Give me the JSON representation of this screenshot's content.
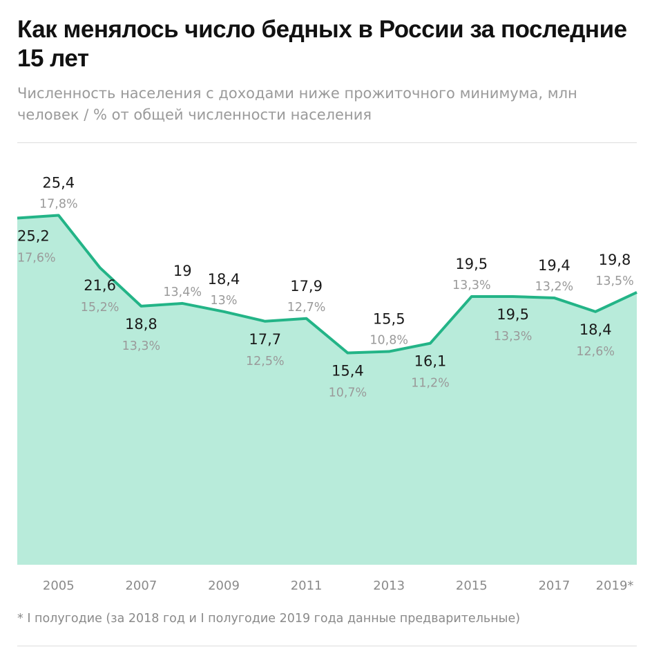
{
  "chart_data": {
    "type": "area",
    "title": "Как менялось число бедных в России за последние 15 лет",
    "subtitle": "Численность населения с доходами ниже прожиточного минимума, млн человек / % от общей численности населения",
    "x": [
      2004,
      2005,
      2006,
      2007,
      2008,
      2009,
      2010,
      2011,
      2012,
      2013,
      2014,
      2015,
      2016,
      2017,
      2018,
      2019
    ],
    "values": [
      25.2,
      25.4,
      21.6,
      18.8,
      19,
      18.4,
      17.7,
      17.9,
      15.4,
      15.5,
      16.1,
      19.5,
      19.5,
      19.4,
      18.4,
      19.8
    ],
    "value_labels": [
      "25,2",
      "25,4",
      "21,6",
      "18,8",
      "19",
      "18,4",
      "17,7",
      "17,9",
      "15,4",
      "15,5",
      "16,1",
      "19,5",
      "19,5",
      "19,4",
      "18,4",
      "19,8"
    ],
    "percent_labels": [
      "17,6%",
      "17,8%",
      "15,2%",
      "13,3%",
      "13,4%",
      "13%",
      "12,5%",
      "12,7%",
      "10,7%",
      "10,8%",
      "11,2%",
      "13,3%",
      "13,3%",
      "13,2%",
      "12,6%",
      "13,5%"
    ],
    "x_tick_values": [
      2005,
      2007,
      2009,
      2011,
      2013,
      2015,
      2017,
      2019
    ],
    "x_tick_labels": [
      "2005",
      "2007",
      "2009",
      "2011",
      "2013",
      "2015",
      "2017",
      "2019*"
    ],
    "xlim": [
      2004,
      2019
    ],
    "ylim": [
      0,
      26
    ],
    "grid": false,
    "colors": {
      "line": "#23b487",
      "fill": "#b8ebda",
      "value_text": "#1a1a1a",
      "percent_text": "#9a9a9a",
      "tick_text": "#8a8a8a"
    },
    "footnote": "* I полугодие (за 2018 год и I полугодие 2019 года данные предварительные)"
  }
}
